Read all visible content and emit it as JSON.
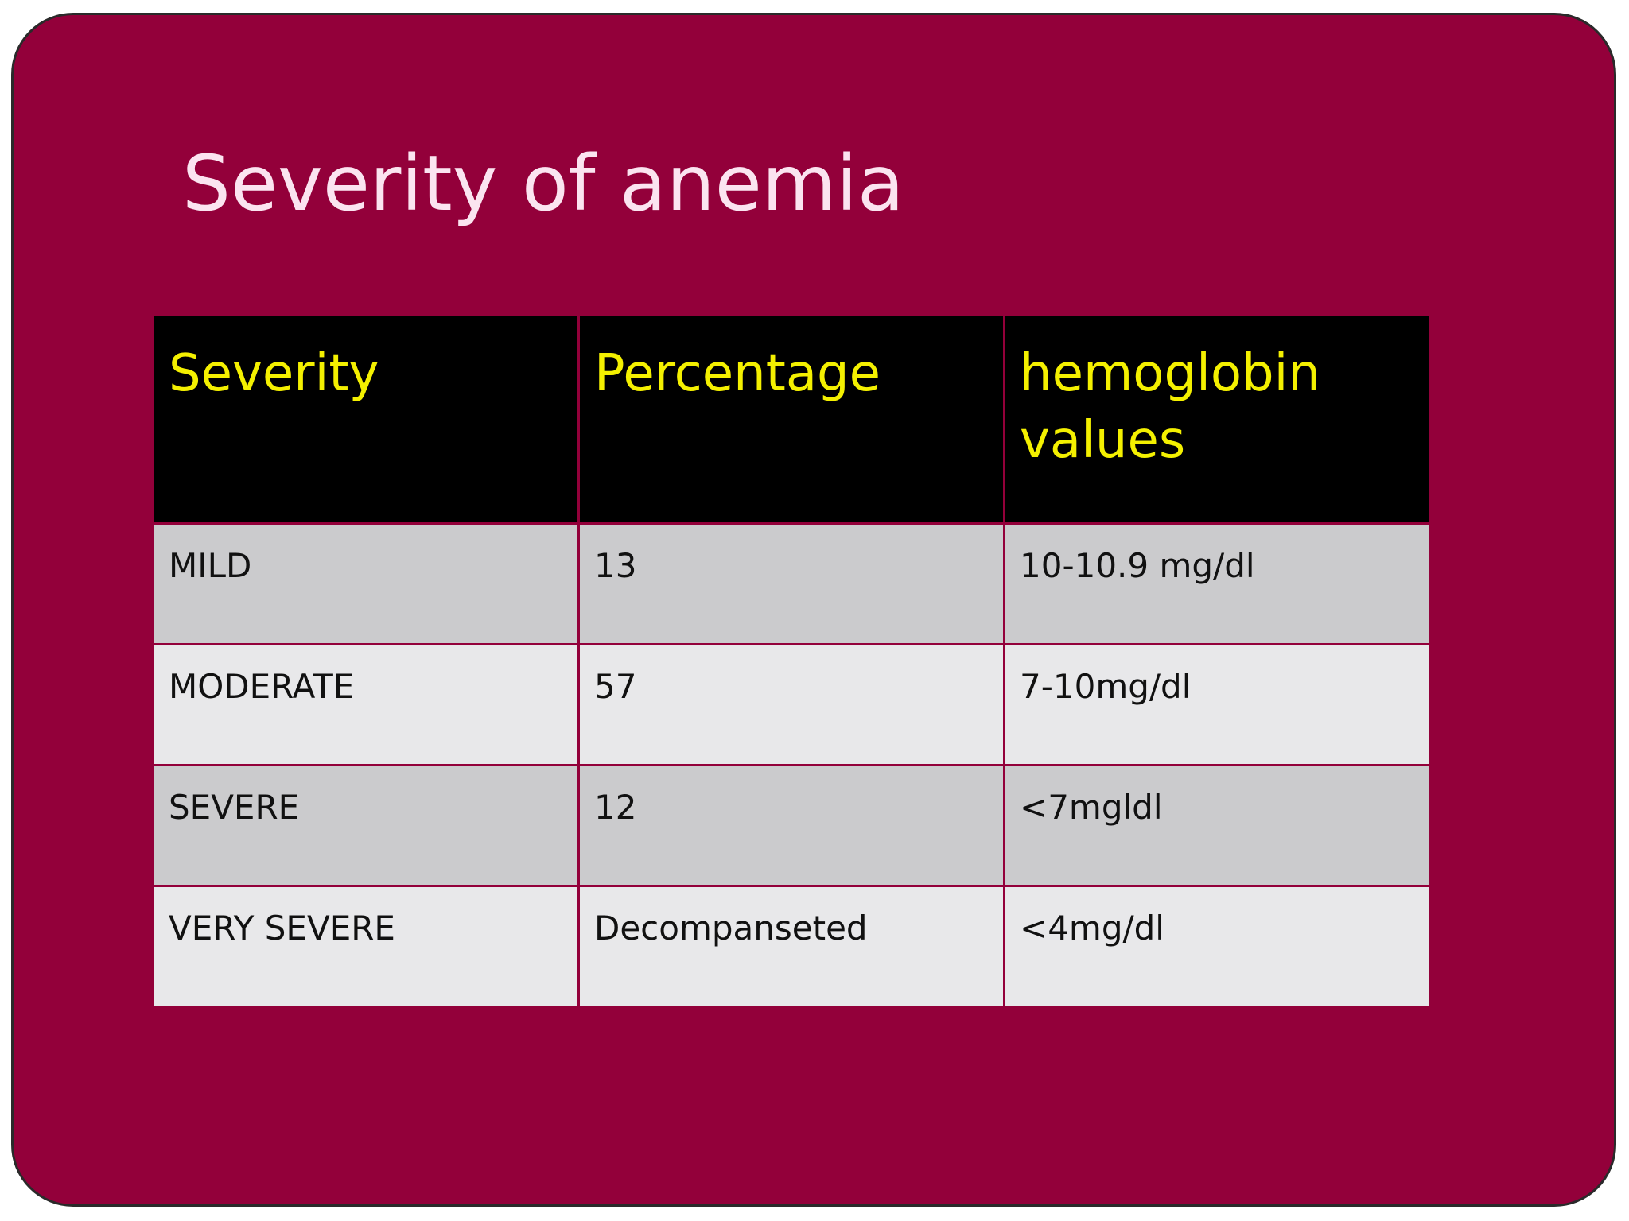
{
  "slide": {
    "title": "Severity of anemia"
  },
  "table": {
    "headers": [
      "Severity",
      "Percentage",
      " hemoglobin\nvalues"
    ],
    "rows": [
      [
        "MILD",
        "13",
        "10-10.9 mg/dl"
      ],
      [
        "MODERATE",
        "57",
        "7-10mg/dl"
      ],
      [
        "SEVERE",
        "12",
        "<7mgldl"
      ],
      [
        "VERY SEVERE",
        "Decompanseted",
        "<4mg/dl"
      ]
    ]
  },
  "colors": {
    "background": "#93003a",
    "title_text": "#fbe4f0",
    "header_background": "#000000",
    "header_text": "#f4f000",
    "row_dark": "#cbcbcd",
    "row_light": "#e8e8ea"
  }
}
